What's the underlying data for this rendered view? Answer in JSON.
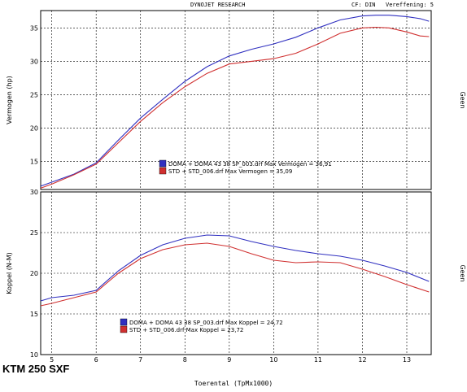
{
  "header": {
    "title": "DYNOJET RESEARCH",
    "correction": "CF: DIN",
    "smoothing": "Vereffening: 5"
  },
  "model": "KTM 250 SXF",
  "colors": {
    "doma": "#3030c0",
    "std": "#d03030",
    "grid": "#000000"
  },
  "chart_data": [
    {
      "type": "line",
      "ylabel": "Vermogen (hp)",
      "right_label": "Geen",
      "xlabel": "",
      "xlim": [
        4.75,
        13.55
      ],
      "ylim": [
        10.8,
        37.6
      ],
      "xticks": [
        5,
        6,
        7,
        8,
        9,
        10,
        11,
        12,
        13
      ],
      "yticks": [
        15,
        20,
        25,
        30,
        35
      ],
      "grid": true,
      "legend_placement": "bottom-center",
      "series": [
        {
          "name": "DOMA + DOMA 43 38 SP_003.drf Max Vermogen = 36,91",
          "color": "#3030c0",
          "x": [
            4.75,
            5.0,
            5.5,
            6.0,
            6.5,
            7.0,
            7.5,
            8.0,
            8.5,
            9.0,
            9.5,
            10.0,
            10.5,
            11.0,
            11.5,
            12.0,
            12.3,
            12.6,
            13.0,
            13.3,
            13.5
          ],
          "y": [
            11.3,
            11.9,
            13.1,
            14.8,
            18.2,
            21.5,
            24.3,
            27.0,
            29.2,
            30.8,
            31.8,
            32.6,
            33.6,
            35.0,
            36.2,
            36.8,
            36.9,
            36.9,
            36.7,
            36.4,
            36.0
          ]
        },
        {
          "name": "STD + STD_006.drf Max Vermogen = 35,09",
          "color": "#d03030",
          "x": [
            4.75,
            5.0,
            5.5,
            6.0,
            6.5,
            7.0,
            7.5,
            8.0,
            8.5,
            9.0,
            9.5,
            10.0,
            10.5,
            11.0,
            11.5,
            12.0,
            12.3,
            12.6,
            13.0,
            13.3,
            13.5
          ],
          "y": [
            11.0,
            11.6,
            13.0,
            14.6,
            17.8,
            21.0,
            23.8,
            26.2,
            28.2,
            29.6,
            30.0,
            30.4,
            31.2,
            32.6,
            34.2,
            35.0,
            35.1,
            35.0,
            34.4,
            33.8,
            33.7
          ]
        }
      ]
    },
    {
      "type": "line",
      "ylabel": "Koppel (N-M)",
      "right_label": "Geen",
      "xlabel": "Toerental (TpMx1000)",
      "xlim": [
        4.75,
        13.55
      ],
      "ylim": [
        10,
        30
      ],
      "xticks": [
        5,
        6,
        7,
        8,
        9,
        10,
        11,
        12,
        13
      ],
      "yticks": [
        10,
        15,
        20,
        25,
        30
      ],
      "grid": true,
      "legend_placement": "bottom-center",
      "series": [
        {
          "name": "DOMA + DOMA 43 38 SP_003.drf Max Koppel = 24,72",
          "color": "#3030c0",
          "x": [
            4.75,
            5.0,
            5.5,
            6.0,
            6.5,
            7.0,
            7.5,
            8.0,
            8.5,
            9.0,
            9.5,
            10.0,
            10.5,
            11.0,
            11.5,
            12.0,
            12.5,
            13.0,
            13.5
          ],
          "y": [
            16.6,
            17.0,
            17.3,
            17.9,
            20.3,
            22.2,
            23.5,
            24.3,
            24.7,
            24.6,
            23.9,
            23.3,
            22.8,
            22.4,
            22.1,
            21.6,
            20.9,
            20.1,
            19.0
          ]
        },
        {
          "name": "STD + STD_006.drf Max Koppel = 23,72",
          "color": "#d03030",
          "x": [
            4.75,
            5.0,
            5.5,
            6.0,
            6.5,
            7.0,
            7.5,
            8.0,
            8.5,
            9.0,
            9.5,
            10.0,
            10.5,
            11.0,
            11.5,
            12.0,
            12.5,
            13.0,
            13.5
          ],
          "y": [
            16.0,
            16.3,
            17.0,
            17.7,
            20.0,
            21.8,
            22.9,
            23.5,
            23.7,
            23.3,
            22.4,
            21.6,
            21.3,
            21.4,
            21.3,
            20.5,
            19.6,
            18.6,
            17.7
          ]
        }
      ]
    }
  ]
}
